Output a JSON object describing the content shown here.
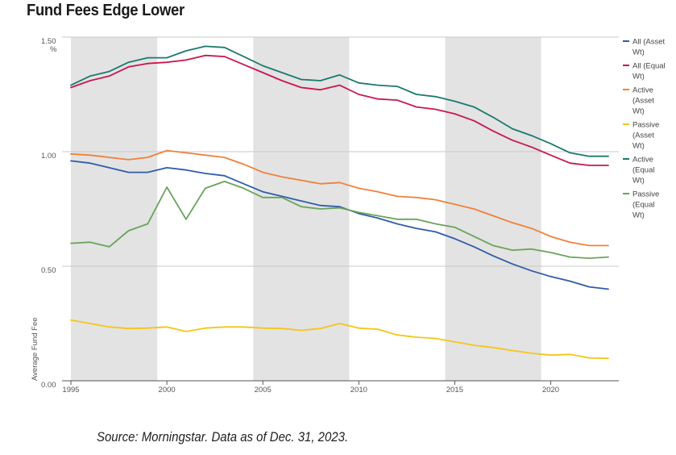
{
  "title": "Fund Fees Edge Lower",
  "source": "Source: Morningstar. Data as of Dec. 31, 2023.",
  "chart_data": {
    "type": "line",
    "ylabel": "Average Fund Fee",
    "y_unit": "%",
    "ylim": [
      0,
      1.5
    ],
    "xlim": [
      1995,
      2023
    ],
    "y_ticks": [
      "1.50",
      "1.00",
      "0.50",
      "0.00"
    ],
    "x_ticks": [
      "1995",
      "2000",
      "2005",
      "2010",
      "2015",
      "2020"
    ],
    "grid": "horizontal",
    "legend_position": "right",
    "shaded_bands": [
      [
        1995,
        1999.5
      ],
      [
        2004.5,
        2009.5
      ],
      [
        2014.5,
        2019.5
      ]
    ],
    "x": [
      1995,
      1996,
      1997,
      1998,
      1999,
      2000,
      2001,
      2002,
      2003,
      2004,
      2005,
      2006,
      2007,
      2008,
      2009,
      2010,
      2011,
      2012,
      2013,
      2014,
      2015,
      2016,
      2017,
      2018,
      2019,
      2020,
      2021,
      2022,
      2023
    ],
    "series": [
      {
        "name": "All (Asset Wt)",
        "color": "#2f5da8",
        "values": [
          0.96,
          0.95,
          0.93,
          0.91,
          0.91,
          0.93,
          0.92,
          0.905,
          0.895,
          0.86,
          0.825,
          0.805,
          0.785,
          0.765,
          0.76,
          0.73,
          0.71,
          0.685,
          0.665,
          0.65,
          0.62,
          0.585,
          0.545,
          0.51,
          0.48,
          0.455,
          0.435,
          0.41,
          0.4
        ]
      },
      {
        "name": "All (Equal Wt)",
        "color": "#c8174e",
        "values": [
          1.28,
          1.31,
          1.33,
          1.37,
          1.385,
          1.39,
          1.4,
          1.42,
          1.415,
          1.38,
          1.345,
          1.31,
          1.28,
          1.27,
          1.29,
          1.25,
          1.23,
          1.225,
          1.195,
          1.185,
          1.165,
          1.135,
          1.09,
          1.05,
          1.02,
          0.985,
          0.95,
          0.94,
          0.94
        ]
      },
      {
        "name": "Active (Asset Wt)",
        "color": "#f0803c",
        "values": [
          0.99,
          0.985,
          0.975,
          0.965,
          0.975,
          1.005,
          0.995,
          0.985,
          0.975,
          0.945,
          0.91,
          0.89,
          0.875,
          0.86,
          0.865,
          0.84,
          0.825,
          0.805,
          0.8,
          0.79,
          0.77,
          0.75,
          0.72,
          0.69,
          0.665,
          0.63,
          0.605,
          0.59,
          0.59
        ]
      },
      {
        "name": "Passive (Asset Wt)",
        "color": "#f5c518",
        "values": [
          0.265,
          0.25,
          0.235,
          0.228,
          0.23,
          0.235,
          0.215,
          0.23,
          0.235,
          0.235,
          0.23,
          0.228,
          0.22,
          0.228,
          0.25,
          0.23,
          0.225,
          0.2,
          0.19,
          0.185,
          0.17,
          0.155,
          0.145,
          0.132,
          0.12,
          0.112,
          0.115,
          0.1,
          0.098
        ]
      },
      {
        "name": "Active (Equal Wt)",
        "color": "#1a7a6e",
        "values": [
          1.29,
          1.33,
          1.35,
          1.39,
          1.41,
          1.41,
          1.44,
          1.46,
          1.455,
          1.415,
          1.375,
          1.345,
          1.315,
          1.31,
          1.335,
          1.3,
          1.29,
          1.285,
          1.25,
          1.24,
          1.22,
          1.195,
          1.15,
          1.1,
          1.07,
          1.035,
          0.995,
          0.98,
          0.98
        ]
      },
      {
        "name": "Passive (Equal Wt)",
        "color": "#6aa35a",
        "values": [
          0.6,
          0.605,
          0.585,
          0.655,
          0.685,
          0.845,
          0.705,
          0.84,
          0.87,
          0.84,
          0.8,
          0.8,
          0.76,
          0.75,
          0.755,
          0.735,
          0.72,
          0.705,
          0.705,
          0.685,
          0.67,
          0.63,
          0.59,
          0.57,
          0.575,
          0.56,
          0.54,
          0.535,
          0.54
        ]
      }
    ]
  }
}
